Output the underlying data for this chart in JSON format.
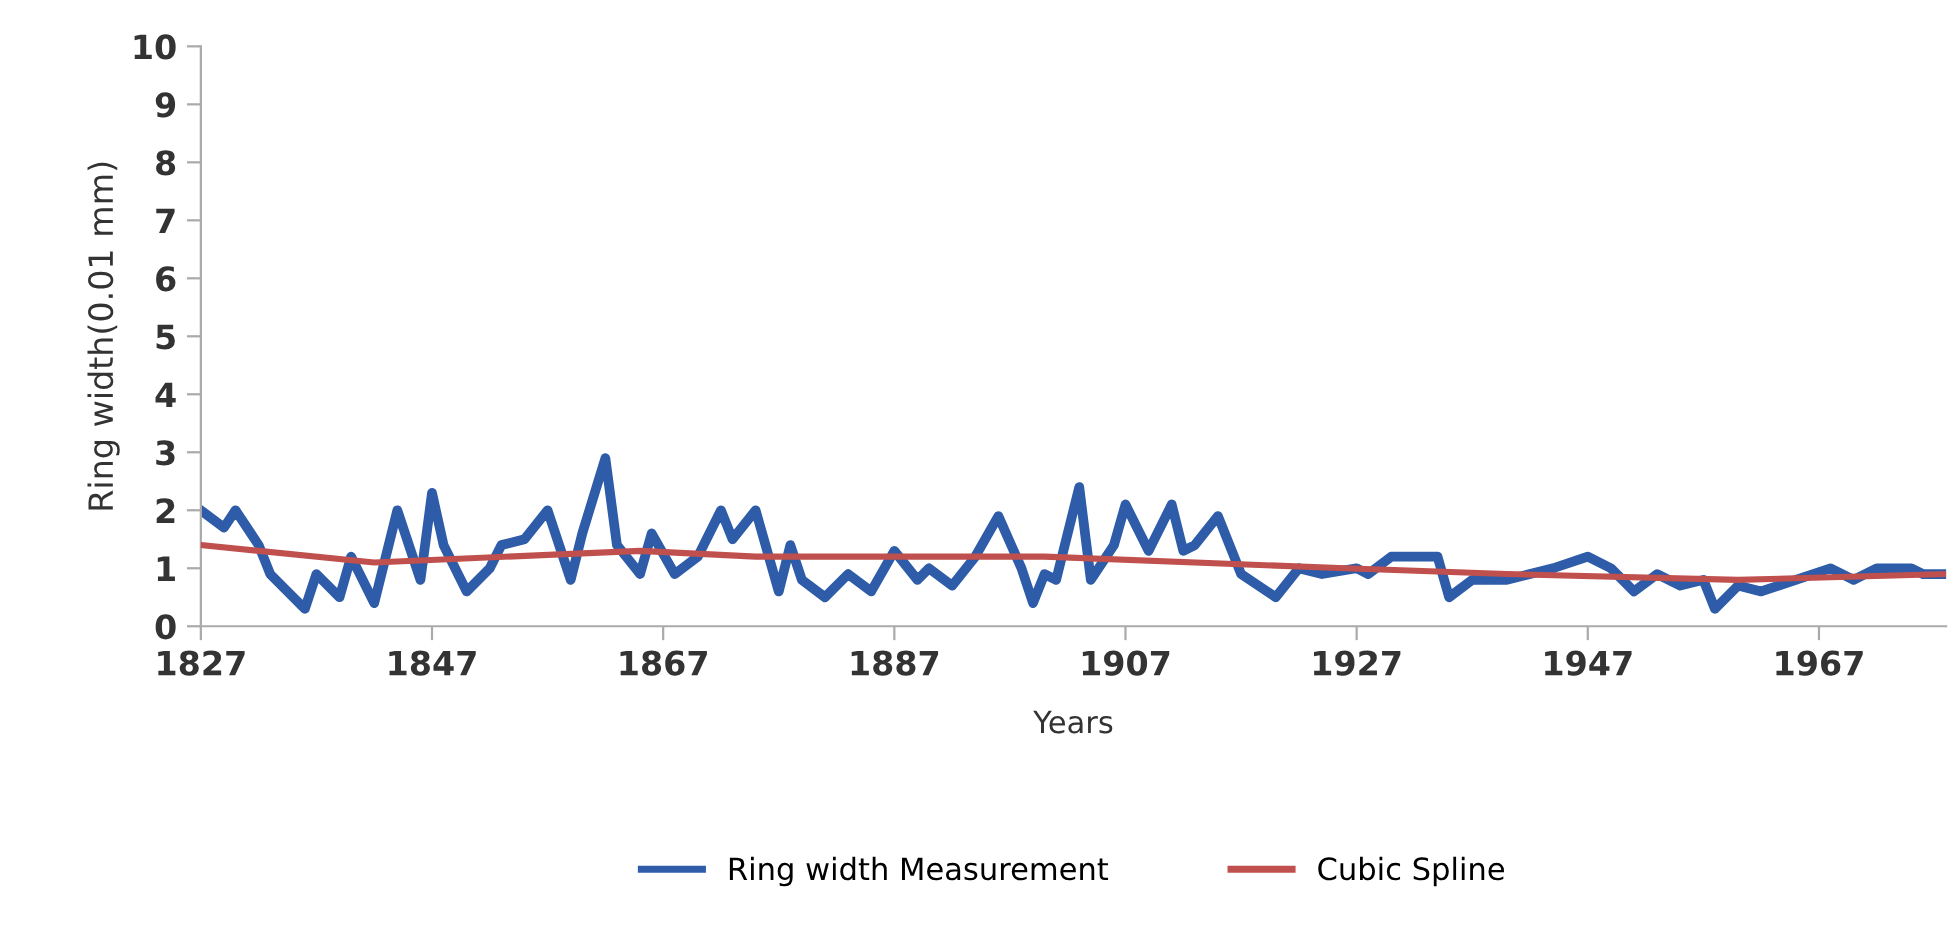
{
  "chart_data": {
    "type": "line",
    "xlabel": "Years",
    "ylabel": "Ring width(0.01 mm)",
    "xlim": [
      1827,
      1978
    ],
    "xticks": [
      1827,
      1847,
      1867,
      1887,
      1907,
      1927,
      1947,
      1967
    ],
    "ylim": [
      0,
      10
    ],
    "yticks": [
      0,
      1,
      2,
      3,
      4,
      5,
      6,
      7,
      8,
      9,
      10
    ],
    "grid": false,
    "legend": "bottom",
    "marker": "none",
    "line_style": "solid",
    "series": [
      {
        "name": "Ring width Measurement",
        "color": "#2e5ca8",
        "x": [
          1827,
          1829,
          1830,
          1832,
          1833,
          1836,
          1837,
          1839,
          1840,
          1842,
          1844,
          1846,
          1847,
          1848,
          1850,
          1852,
          1853,
          1855,
          1857,
          1859,
          1860,
          1862,
          1863,
          1865,
          1866,
          1868,
          1870,
          1872,
          1873,
          1875,
          1877,
          1878,
          1879,
          1881,
          1883,
          1885,
          1887,
          1889,
          1890,
          1892,
          1894,
          1896,
          1898,
          1899,
          1900,
          1901,
          1903,
          1904,
          1906,
          1907,
          1909,
          1911,
          1912,
          1913,
          1915,
          1917,
          1920,
          1922,
          1924,
          1927,
          1928,
          1930,
          1932,
          1934,
          1935,
          1937,
          1940,
          1942,
          1944,
          1947,
          1949,
          1951,
          1953,
          1955,
          1957,
          1958,
          1960,
          1962,
          1965,
          1968,
          1970,
          1972,
          1975,
          1976,
          1978
        ],
        "values": [
          2.0,
          1.7,
          2.0,
          1.4,
          0.9,
          0.3,
          0.9,
          0.5,
          1.2,
          0.4,
          2.0,
          0.8,
          2.3,
          1.4,
          0.6,
          1.0,
          1.4,
          1.5,
          2.0,
          0.8,
          1.6,
          2.9,
          1.4,
          0.9,
          1.6,
          0.9,
          1.2,
          2.0,
          1.5,
          2.0,
          0.6,
          1.4,
          0.8,
          0.5,
          0.9,
          0.6,
          1.3,
          0.8,
          1.0,
          0.7,
          1.2,
          1.9,
          1.0,
          0.4,
          0.9,
          0.8,
          2.4,
          0.8,
          1.4,
          2.1,
          1.3,
          2.1,
          1.3,
          1.4,
          1.9,
          0.9,
          0.5,
          1.0,
          0.9,
          1.0,
          0.9,
          1.2,
          1.2,
          1.2,
          0.5,
          0.8,
          0.8,
          0.9,
          1.0,
          1.2,
          1.0,
          0.6,
          0.9,
          0.7,
          0.8,
          0.3,
          0.7,
          0.6,
          0.8,
          1.0,
          0.8,
          1.0,
          1.0,
          0.9,
          0.9
        ]
      },
      {
        "name": "Cubic Spline",
        "color": "#c0504d",
        "x": [
          1827,
          1842,
          1865,
          1875,
          1900,
          1926,
          1940,
          1960,
          1978
        ],
        "values": [
          1.4,
          1.1,
          1.3,
          1.2,
          1.2,
          1.0,
          0.9,
          0.8,
          0.9
        ]
      }
    ]
  }
}
